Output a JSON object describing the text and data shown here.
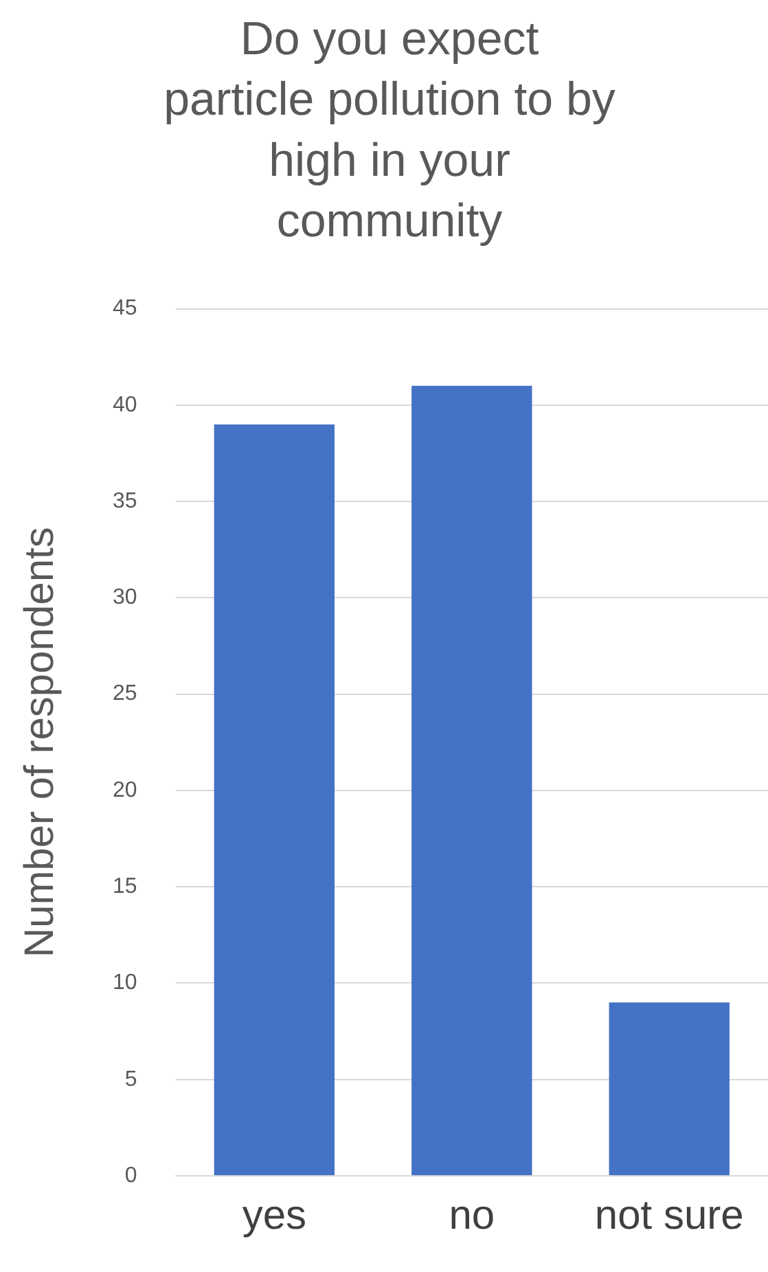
{
  "chart_data": {
    "type": "bar",
    "title": "Do you expect particle pollution to by high in your community",
    "ylabel": "Number of respondents",
    "categories": [
      "yes",
      "no",
      "not sure"
    ],
    "values": [
      39,
      41,
      9
    ],
    "color": "#4472c4",
    "ylim": [
      0,
      45
    ],
    "yticks": [
      0,
      5,
      10,
      15,
      20,
      25,
      30,
      35,
      40,
      45
    ],
    "grid": "y",
    "legend": false
  }
}
